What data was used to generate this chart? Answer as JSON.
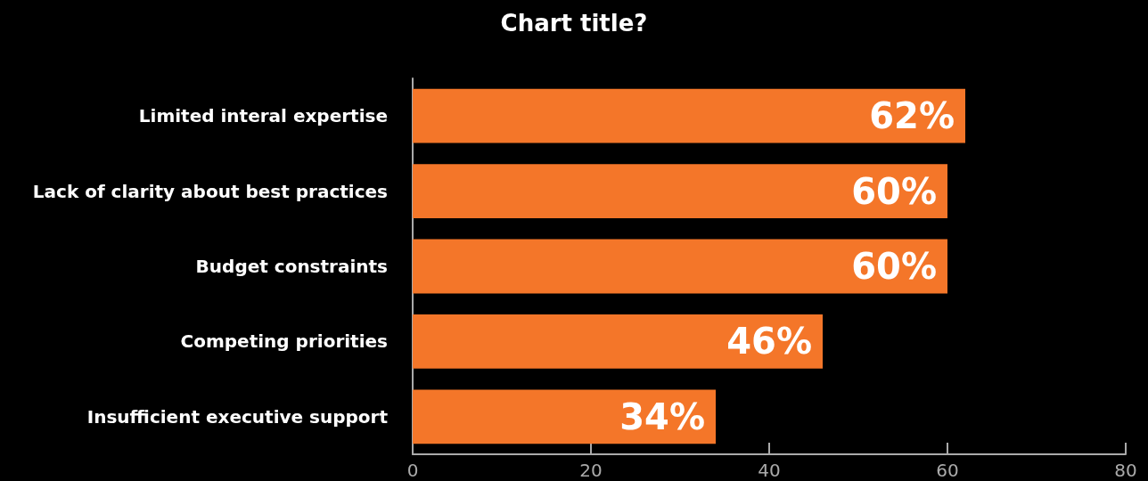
{
  "chart_data": {
    "type": "bar",
    "title": "Chart title?",
    "orientation": "horizontal",
    "categories": [
      "Limited interal expertise",
      "Lack of clarity about best practices",
      "Budget constraints",
      "Competing priorities",
      "Insufficient executive support"
    ],
    "values": [
      62,
      60,
      60,
      46,
      34
    ],
    "value_labels": [
      "62%",
      "60%",
      "60%",
      "46%",
      "34%"
    ],
    "color": "#f47629",
    "xlim": [
      0,
      80
    ],
    "xticks": [
      0,
      20,
      40,
      60,
      80
    ],
    "grid": false
  }
}
